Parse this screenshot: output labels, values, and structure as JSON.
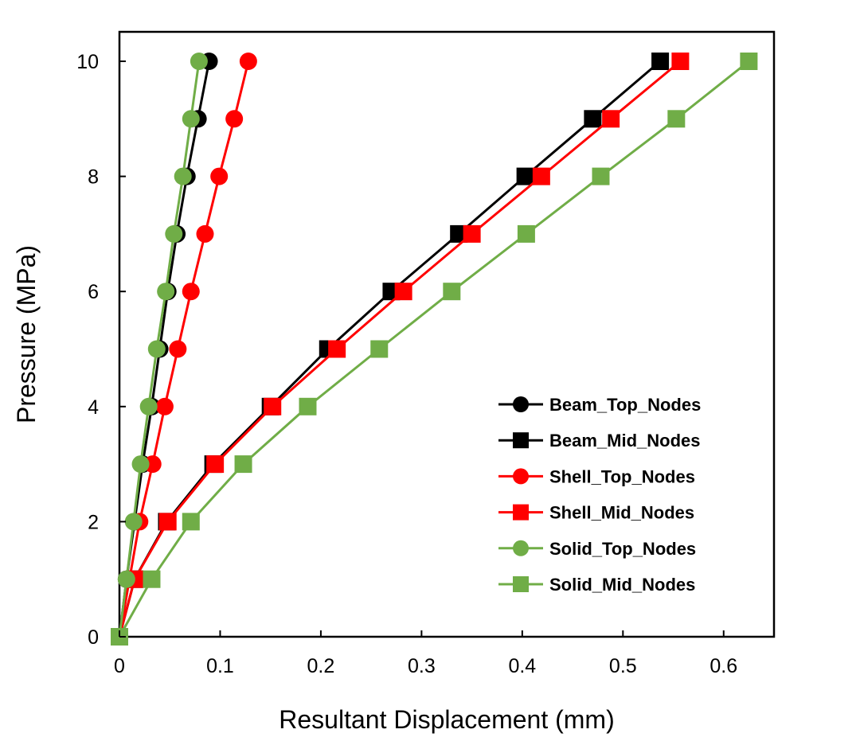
{
  "chart_data": {
    "type": "line",
    "xlabel": "Resultant Displacement (mm)",
    "ylabel": "Pressure (MPa)",
    "xlim": [
      0,
      0.65
    ],
    "ylim": [
      0,
      10.5
    ],
    "x_ticks": [
      0,
      0.1,
      0.2,
      0.3,
      0.4,
      0.5,
      0.6
    ],
    "x_tick_labels": [
      "0",
      "0.1",
      "0.2",
      "0.3",
      "0.4",
      "0.5",
      "0.6"
    ],
    "y_ticks": [
      0,
      2,
      4,
      6,
      8,
      10
    ],
    "y_tick_labels": [
      "0",
      "2",
      "4",
      "6",
      "8",
      "10"
    ],
    "grid": false,
    "legend_position": "lower-right",
    "series": [
      {
        "name": "Beam_Top_Nodes",
        "color": "#000000",
        "marker": "circle",
        "points": [
          [
            0,
            0
          ],
          [
            0.007,
            1
          ],
          [
            0.015,
            2
          ],
          [
            0.023,
            3
          ],
          [
            0.032,
            4
          ],
          [
            0.04,
            5
          ],
          [
            0.048,
            6
          ],
          [
            0.057,
            7
          ],
          [
            0.067,
            8
          ],
          [
            0.078,
            9
          ],
          [
            0.089,
            10
          ]
        ]
      },
      {
        "name": "Beam_Mid_Nodes",
        "color": "#000000",
        "marker": "square",
        "points": [
          [
            0,
            0
          ],
          [
            0.015,
            1
          ],
          [
            0.047,
            2
          ],
          [
            0.093,
            3
          ],
          [
            0.15,
            4
          ],
          [
            0.207,
            5
          ],
          [
            0.27,
            6
          ],
          [
            0.337,
            7
          ],
          [
            0.403,
            8
          ],
          [
            0.47,
            9
          ],
          [
            0.537,
            10
          ]
        ]
      },
      {
        "name": "Shell_Top_Nodes",
        "color": "#ff0000",
        "marker": "circle",
        "points": [
          [
            0,
            0
          ],
          [
            0.01,
            1
          ],
          [
            0.02,
            2
          ],
          [
            0.033,
            3
          ],
          [
            0.045,
            4
          ],
          [
            0.058,
            5
          ],
          [
            0.071,
            6
          ],
          [
            0.085,
            7
          ],
          [
            0.099,
            8
          ],
          [
            0.114,
            9
          ],
          [
            0.128,
            10
          ]
        ]
      },
      {
        "name": "Shell_Mid_Nodes",
        "color": "#ff0000",
        "marker": "square",
        "points": [
          [
            0,
            0
          ],
          [
            0.015,
            1
          ],
          [
            0.048,
            2
          ],
          [
            0.095,
            3
          ],
          [
            0.152,
            4
          ],
          [
            0.216,
            5
          ],
          [
            0.282,
            6
          ],
          [
            0.35,
            7
          ],
          [
            0.419,
            8
          ],
          [
            0.488,
            9
          ],
          [
            0.557,
            10
          ]
        ]
      },
      {
        "name": "Solid_Top_Nodes",
        "color": "#70ad47",
        "marker": "circle",
        "points": [
          [
            0,
            0
          ],
          [
            0.007,
            1
          ],
          [
            0.014,
            2
          ],
          [
            0.021,
            3
          ],
          [
            0.029,
            4
          ],
          [
            0.037,
            5
          ],
          [
            0.046,
            6
          ],
          [
            0.054,
            7
          ],
          [
            0.063,
            8
          ],
          [
            0.071,
            9
          ],
          [
            0.079,
            10
          ]
        ]
      },
      {
        "name": "Solid_Mid_Nodes",
        "color": "#70ad47",
        "marker": "square",
        "points": [
          [
            0,
            0
          ],
          [
            0.032,
            1
          ],
          [
            0.071,
            2
          ],
          [
            0.123,
            3
          ],
          [
            0.187,
            4
          ],
          [
            0.258,
            5
          ],
          [
            0.33,
            6
          ],
          [
            0.404,
            7
          ],
          [
            0.478,
            8
          ],
          [
            0.553,
            9
          ],
          [
            0.625,
            10
          ]
        ]
      }
    ]
  }
}
